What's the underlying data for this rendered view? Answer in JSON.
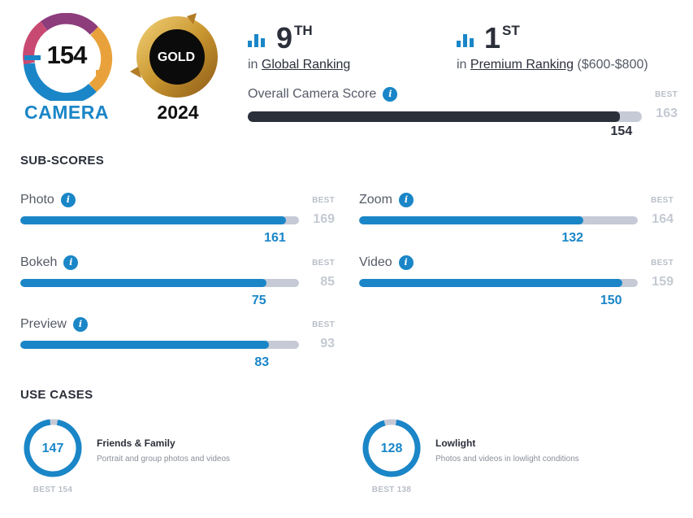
{
  "badge": {
    "score": "154",
    "label": "CAMERA"
  },
  "gold": {
    "label": "GOLD",
    "year": "2024"
  },
  "ranking": {
    "global": {
      "position": "9",
      "suffix": "TH",
      "prefix": "in",
      "link": "Global Ranking"
    },
    "premium": {
      "position": "1",
      "suffix": "ST",
      "prefix": "in",
      "link": "Premium Ranking",
      "range": "($600-$800)"
    }
  },
  "overall": {
    "label": "Overall Camera Score",
    "value": 154,
    "best": 163,
    "best_label": "BEST"
  },
  "subscores": {
    "title": "SUB-SCORES",
    "items": [
      {
        "label": "Photo",
        "value": 161,
        "best": 169,
        "best_label": "BEST"
      },
      {
        "label": "Zoom",
        "value": 132,
        "best": 164,
        "best_label": "BEST"
      },
      {
        "label": "Bokeh",
        "value": 75,
        "best": 85,
        "best_label": "BEST"
      },
      {
        "label": "Video",
        "value": 150,
        "best": 159,
        "best_label": "BEST"
      },
      {
        "label": "Preview",
        "value": 83,
        "best": 93,
        "best_label": "BEST"
      }
    ]
  },
  "use_cases": {
    "title": "USE CASES",
    "items": [
      {
        "value": 147,
        "best": 154,
        "best_text": "BEST 154",
        "title": "Friends & Family",
        "desc": "Portrait and group photos and videos"
      },
      {
        "value": 128,
        "best": 138,
        "best_text": "BEST 138",
        "title": "Lowlight",
        "desc": "Photos and videos in lowlight conditions"
      }
    ]
  },
  "colors": {
    "accent": "#1a86c7",
    "dark": "#2b2f3a",
    "track": "#c6cad6",
    "gold": "#c9962f"
  }
}
